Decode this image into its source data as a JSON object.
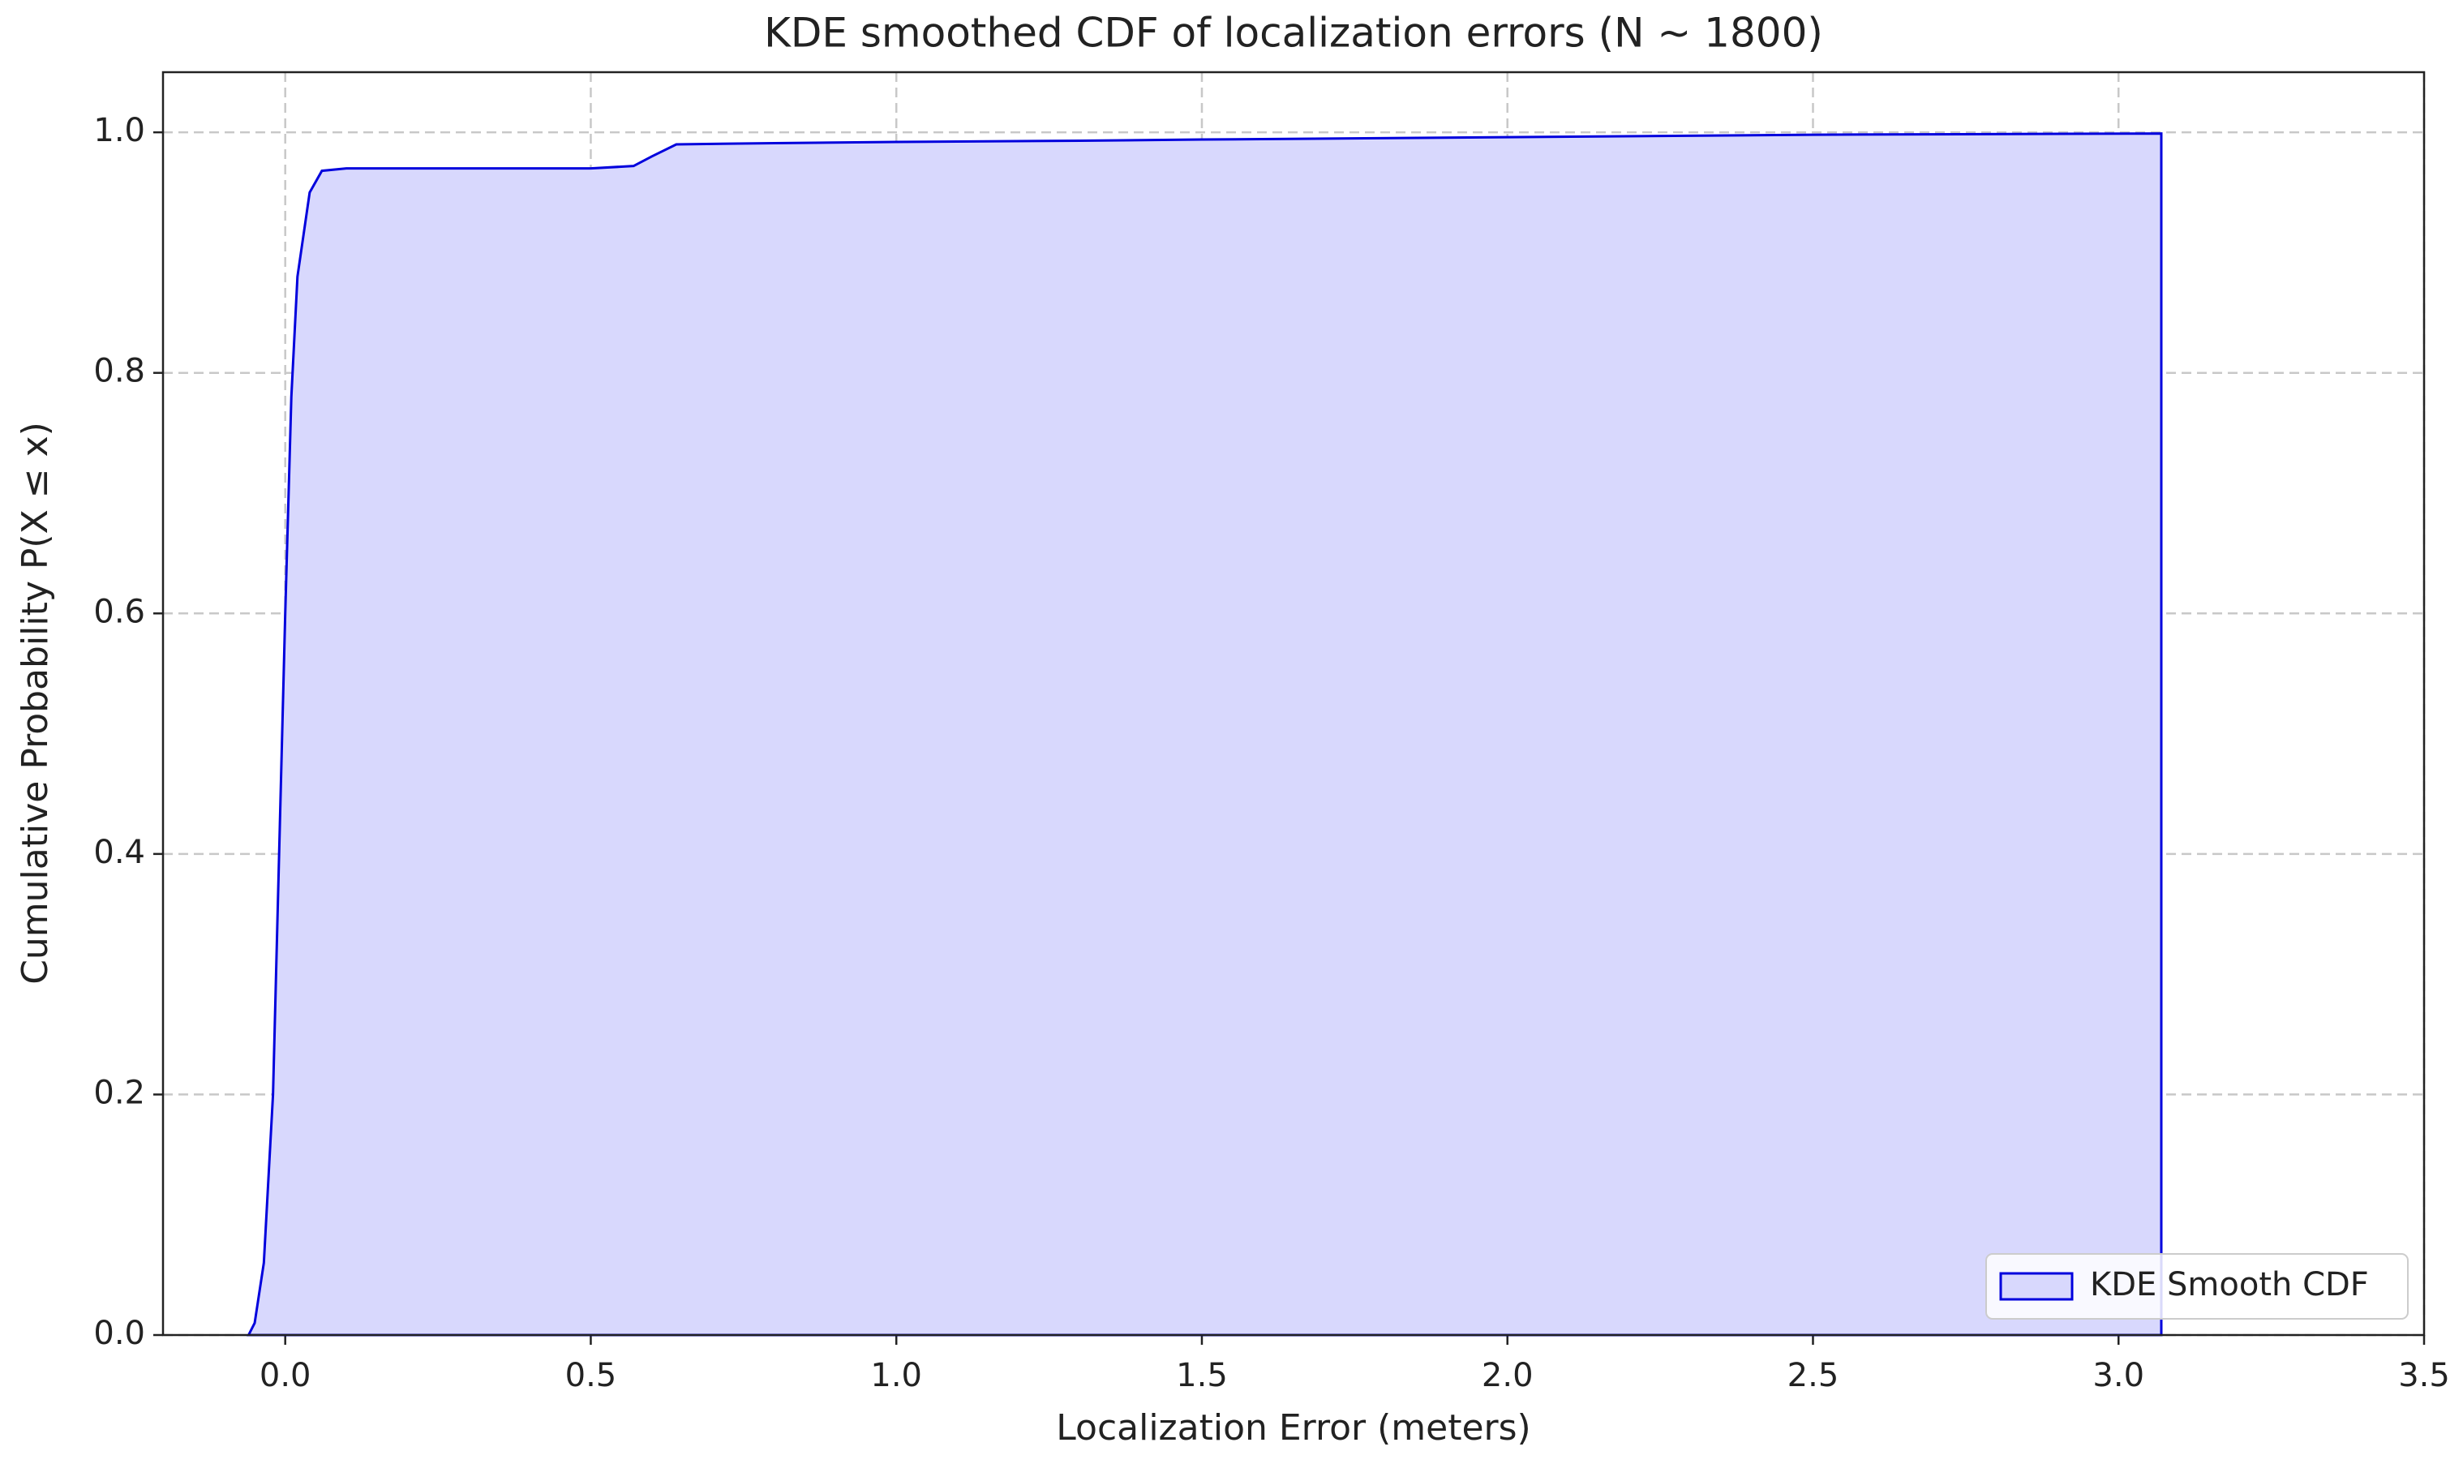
{
  "chart_data": {
    "type": "area",
    "title": "KDE smoothed CDF of localization errors (N ~ 1800)",
    "xlabel": "Localization Error (meters)",
    "ylabel": "Cumulative Probability P(X ≤ x)",
    "series": [
      {
        "name": "KDE Smooth CDF",
        "color": "#0000dd",
        "fill": "#d8d8fd",
        "x": [
          -0.06,
          -0.05,
          -0.035,
          -0.02,
          -0.01,
          0.0,
          0.01,
          0.02,
          0.04,
          0.06,
          0.1,
          0.3,
          0.5,
          0.57,
          0.6,
          0.64,
          0.8,
          1.0,
          1.3,
          1.5,
          2.0,
          2.5,
          3.07
        ],
        "values": [
          0.0,
          0.01,
          0.06,
          0.2,
          0.4,
          0.6,
          0.78,
          0.88,
          0.95,
          0.968,
          0.97,
          0.97,
          0.97,
          0.972,
          0.98,
          0.99,
          0.991,
          0.992,
          0.993,
          0.994,
          0.996,
          0.998,
          0.999
        ]
      }
    ],
    "xlim": [
      -0.2,
      3.5
    ],
    "xticks": [
      {
        "value": 0,
        "label": "0.0"
      },
      0.5,
      {
        "value": 1,
        "label": "1.0"
      },
      1.5,
      {
        "value": 2,
        "label": "2.0"
      },
      2.5,
      {
        "value": 3,
        "label": "3.0"
      },
      3.5
    ],
    "ylim": [
      0,
      1.05
    ],
    "yticks": [
      {
        "value": 0,
        "label": "0.0"
      },
      0.2,
      0.4,
      0.6,
      0.8,
      {
        "value": 1,
        "label": "1.0"
      }
    ],
    "grid": true,
    "legend": "lower right"
  }
}
